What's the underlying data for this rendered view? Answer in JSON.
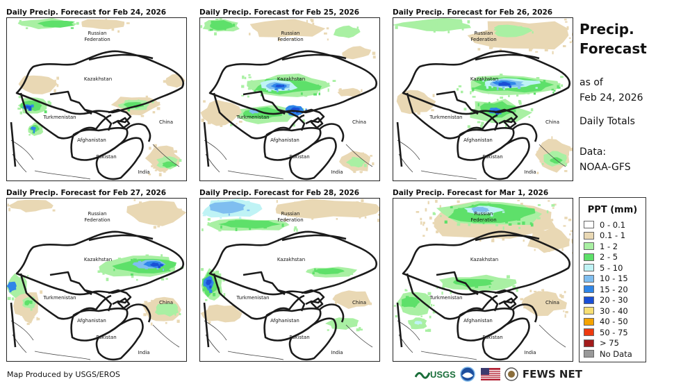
{
  "panels": [
    {
      "title": "Daily Precip. Forecast for Feb 24, 2026",
      "day": 0
    },
    {
      "title": "Daily Precip. Forecast for Feb 25, 2026",
      "day": 1
    },
    {
      "title": "Daily Precip. Forecast for Feb 26, 2026",
      "day": 2
    },
    {
      "title": "Daily Precip. Forecast for Feb 27, 2026",
      "day": 3
    },
    {
      "title": "Daily Precip. Forecast for Feb 28, 2026",
      "day": 4
    },
    {
      "title": "Daily Precip. Forecast for Mar 1, 2026",
      "day": 5
    }
  ],
  "map_labels": {
    "russia": "Russian\nFederation",
    "kazakhstan": "Kazakhstan",
    "turkmenistan": "Turkmenistan",
    "afghanistan": "Afghanistan",
    "pakistan": "Pakistan",
    "india": "India",
    "china": "China"
  },
  "info": {
    "title_line1": "Precip.",
    "title_line2": "Forecast",
    "as_of": "as of",
    "date": "Feb 24, 2026",
    "totals": "Daily Totals",
    "data_label": "Data:",
    "data_source": "NOAA-GFS"
  },
  "legend": {
    "title": "PPT (mm)",
    "items": [
      {
        "label": "0 - 0.1",
        "color": "#ffffff"
      },
      {
        "label": "0.1 - 1",
        "color": "#e9d8b4"
      },
      {
        "label": "1 - 2",
        "color": "#a9f0a3"
      },
      {
        "label": "2 - 5",
        "color": "#5ee06a"
      },
      {
        "label": "5 - 10",
        "color": "#bff3f5"
      },
      {
        "label": "10 - 15",
        "color": "#7fbef0"
      },
      {
        "label": "15 - 20",
        "color": "#2f86e8"
      },
      {
        "label": "20 - 30",
        "color": "#1a4fd6"
      },
      {
        "label": "30 - 40",
        "color": "#f7df74"
      },
      {
        "label": "40 - 50",
        "color": "#f5a300"
      },
      {
        "label": "50 - 75",
        "color": "#ee3a0f"
      },
      {
        "label": "> 75",
        "color": "#a31c1c"
      },
      {
        "label": "No Data",
        "color": "#999999"
      }
    ]
  },
  "footer": {
    "credit": "Map Produced by USGS/EROS",
    "usgs_logo": "USGS",
    "fews_logo": "FEWS NET"
  }
}
